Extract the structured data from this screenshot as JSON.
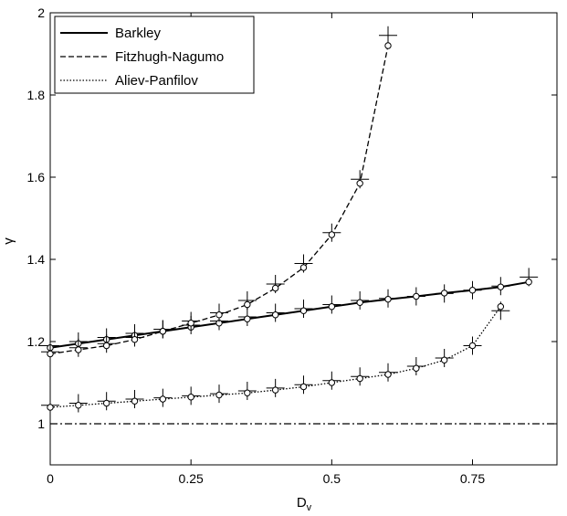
{
  "chart_data": {
    "type": "line",
    "title": "",
    "xlabel": "D",
    "xlabel_subscript": "v",
    "ylabel": "γ",
    "xlim": [
      0,
      0.9
    ],
    "ylim": [
      0.9,
      2.0
    ],
    "xticks": [
      0,
      0.25,
      0.5,
      0.75
    ],
    "xtick_labels": [
      "0",
      "0.25",
      "0.5",
      "0.75"
    ],
    "yticks": [
      1,
      1.2,
      1.4,
      1.6,
      1.8,
      2
    ],
    "ytick_labels": [
      "1",
      "1.2",
      "1.4",
      "1.6",
      "1.8",
      "2"
    ],
    "grid": false,
    "legend_position": "top-left",
    "reference_line": {
      "y": 1.0,
      "style": "dashdot"
    },
    "series": [
      {
        "name": "Barkley",
        "style": "solid",
        "x": [
          0,
          0.05,
          0.1,
          0.15,
          0.2,
          0.25,
          0.3,
          0.35,
          0.4,
          0.45,
          0.5,
          0.55,
          0.6,
          0.65,
          0.7,
          0.75,
          0.8,
          0.85
        ],
        "y": [
          1.185,
          1.195,
          1.205,
          1.215,
          1.225,
          1.235,
          1.245,
          1.255,
          1.265,
          1.275,
          1.285,
          1.295,
          1.303,
          1.31,
          1.318,
          1.325,
          1.333,
          1.345
        ],
        "cross_y": [
          1.19,
          1.2,
          1.21,
          1.22,
          1.23,
          1.24,
          1.25,
          1.26,
          1.27,
          1.28,
          1.29,
          1.3,
          1.305,
          1.31,
          1.317,
          1.325,
          1.335,
          1.357
        ]
      },
      {
        "name": "Fitzhugh-Nagumo",
        "style": "dashed",
        "x": [
          0,
          0.05,
          0.1,
          0.15,
          0.2,
          0.25,
          0.3,
          0.35,
          0.4,
          0.45,
          0.5,
          0.55,
          0.6
        ],
        "y": [
          1.17,
          1.18,
          1.19,
          1.205,
          1.225,
          1.245,
          1.265,
          1.29,
          1.33,
          1.38,
          1.46,
          1.585,
          1.92
        ],
        "cross_y": [
          1.175,
          1.185,
          1.195,
          1.21,
          1.23,
          1.25,
          1.27,
          1.3,
          1.34,
          1.39,
          1.465,
          1.595,
          1.945
        ]
      },
      {
        "name": "Aliev-Panfilov",
        "style": "dotted",
        "x": [
          0,
          0.05,
          0.1,
          0.15,
          0.2,
          0.25,
          0.3,
          0.35,
          0.4,
          0.45,
          0.5,
          0.55,
          0.6,
          0.65,
          0.7,
          0.75,
          0.8
        ],
        "y": [
          1.04,
          1.045,
          1.05,
          1.055,
          1.06,
          1.065,
          1.07,
          1.075,
          1.082,
          1.09,
          1.1,
          1.11,
          1.12,
          1.135,
          1.155,
          1.19,
          1.285
        ],
        "cross_y": [
          1.045,
          1.05,
          1.055,
          1.06,
          1.063,
          1.068,
          1.073,
          1.08,
          1.087,
          1.095,
          1.105,
          1.115,
          1.125,
          1.14,
          1.16,
          1.19,
          1.275
        ]
      }
    ]
  }
}
